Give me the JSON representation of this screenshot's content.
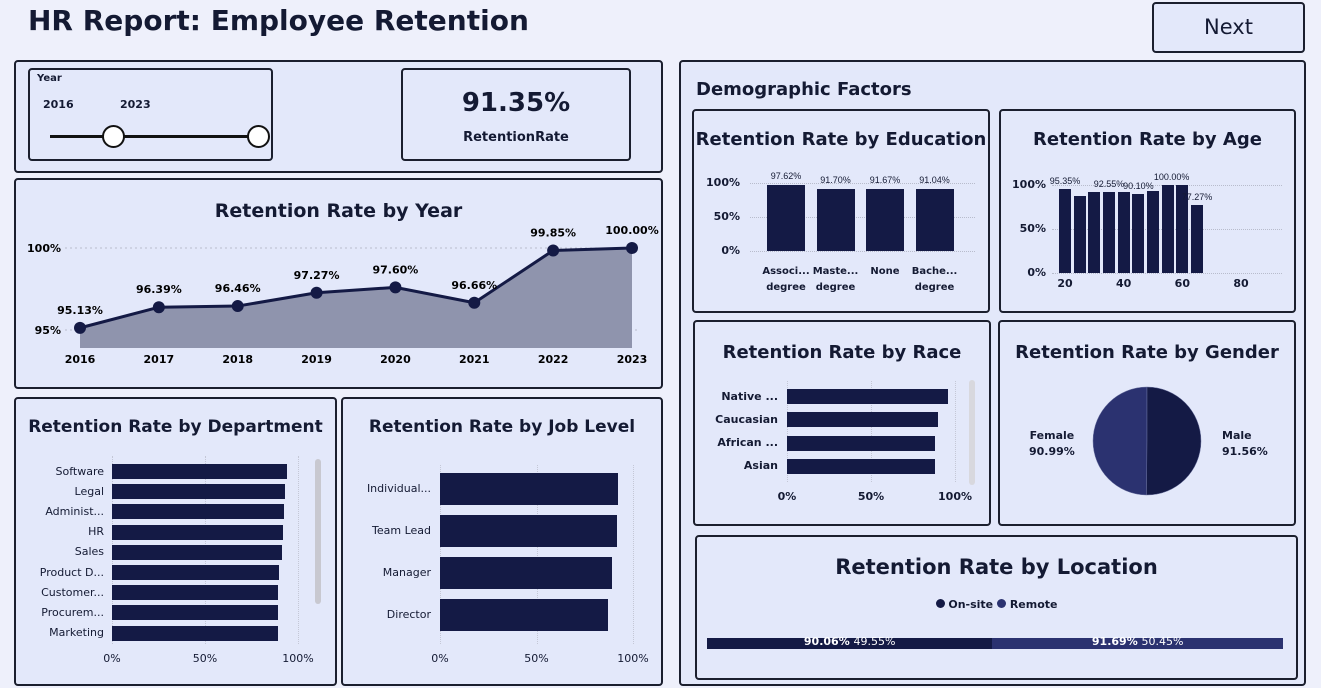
{
  "header": {
    "title": "HR Report: Employee Retention",
    "next_label": "Next"
  },
  "slicer": {
    "label": "Year",
    "start": "2016",
    "end": "2023"
  },
  "kpi": {
    "value": "91.35%",
    "label": "RetentionRate"
  },
  "colors": {
    "dark": "#141a45",
    "remote": "#2b3270",
    "area": "#8f94ad"
  },
  "chart_data": [
    {
      "id": "year",
      "type": "area",
      "title": "Retention Rate by Year",
      "x": [
        "2016",
        "2017",
        "2018",
        "2019",
        "2020",
        "2021",
        "2022",
        "2023"
      ],
      "values": [
        95.13,
        96.39,
        96.46,
        97.27,
        97.6,
        96.66,
        99.85,
        100.0
      ],
      "labels": [
        "95.13%",
        "96.39%",
        "96.46%",
        "97.27%",
        "97.60%",
        "96.66%",
        "99.85%",
        "100.00%"
      ],
      "yticks": [
        "100%",
        "95%"
      ],
      "ylim": [
        95,
        100
      ]
    },
    {
      "id": "dept",
      "type": "bar",
      "title": "Retention Rate by Department",
      "categories": [
        "Software",
        "Legal",
        "Administ...",
        "HR",
        "Sales",
        "Product D...",
        "Customer...",
        "Procurem...",
        "Marketing"
      ],
      "values": [
        94,
        93,
        92.5,
        92,
        91.5,
        90,
        89.5,
        89.5,
        89
      ],
      "xticks": [
        "0%",
        "50%",
        "100%"
      ]
    },
    {
      "id": "job",
      "type": "bar",
      "title": "Retention Rate by Job Level",
      "categories": [
        "Individual...",
        "Team Lead",
        "Manager",
        "Director"
      ],
      "values": [
        92,
        91.5,
        89,
        87
      ],
      "xticks": [
        "0%",
        "50%",
        "100%"
      ]
    },
    {
      "id": "edu",
      "type": "bar",
      "title": "Retention Rate by Education",
      "categories": [
        [
          "Associ...",
          "degree"
        ],
        [
          "Maste...",
          "degree"
        ],
        [
          "None",
          ""
        ],
        [
          "Bache...",
          "degree"
        ]
      ],
      "values": [
        97.62,
        91.7,
        91.67,
        91.04
      ],
      "labels": [
        "97.62%",
        "91.70%",
        "91.67%",
        "91.04%"
      ],
      "yticks": [
        "100%",
        "50%",
        "0%"
      ]
    },
    {
      "id": "age",
      "type": "bar",
      "title": "Retention Rate by Age",
      "x": [
        20,
        25,
        30,
        35,
        40,
        45,
        50,
        55,
        60,
        65
      ],
      "values": [
        95.35,
        88,
        92,
        92.55,
        92,
        90.1,
        93,
        100,
        100,
        77.27
      ],
      "labels": [
        "95.35%",
        "",
        "",
        "92.55%",
        "",
        "90.10%",
        "",
        "100.00%",
        "",
        "77.27%"
      ],
      "yticks": [
        "100%",
        "50%",
        "0%"
      ],
      "xticks": [
        "20",
        "40",
        "60",
        "80"
      ]
    },
    {
      "id": "race",
      "type": "bar",
      "title": "Retention Rate by Race",
      "categories": [
        "Native ...",
        "Caucasian",
        "African ...",
        "Asian"
      ],
      "values": [
        96,
        90,
        88,
        88
      ],
      "xticks": [
        "0%",
        "50%",
        "100%"
      ]
    },
    {
      "id": "gender",
      "type": "pie",
      "title": "Retention Rate by Gender",
      "slices": [
        {
          "name": "Female",
          "value": 90.99,
          "label": "90.99%"
        },
        {
          "name": "Male",
          "value": 91.56,
          "label": "91.56%"
        }
      ]
    },
    {
      "id": "location",
      "type": "stacked-bar",
      "title": "Retention Rate by Location",
      "legend": [
        "On-site",
        "Remote"
      ],
      "segments": [
        {
          "name": "On-site",
          "rate": "90.06%",
          "share": "49.55%",
          "value": 49.55
        },
        {
          "name": "Remote",
          "rate": "91.69%",
          "share": "50.45%",
          "value": 50.45
        }
      ]
    }
  ],
  "demographics": {
    "title": "Demographic Factors"
  }
}
